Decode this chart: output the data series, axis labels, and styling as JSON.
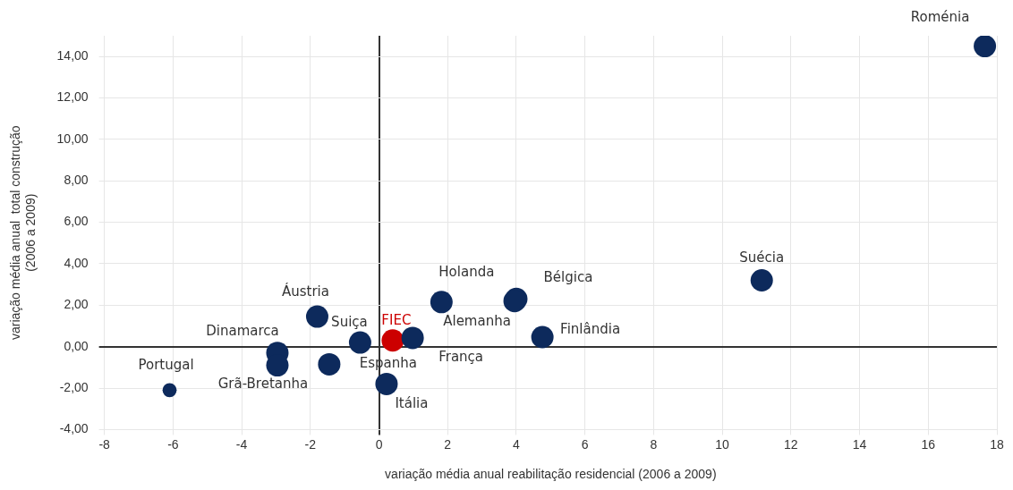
{
  "chart_data": {
    "type": "bubble",
    "xlabel": "variação média anual reabilitação residencial (2006 a 2009)",
    "ylabel": "variação média anual  total construção\n(2006 a 2009)",
    "xlim": [
      -8,
      18
    ],
    "xticks": [
      -8,
      -6,
      -4,
      -2,
      0,
      2,
      4,
      6,
      8,
      10,
      12,
      14,
      16,
      18
    ],
    "ylim": [
      -4,
      15
    ],
    "yticks": [
      {
        "value": -4,
        "label": "-4,00"
      },
      {
        "value": -2,
        "label": "-2,00"
      },
      {
        "value": 0,
        "label": "0,00"
      },
      {
        "value": 2,
        "label": "2,00"
      },
      {
        "value": 4,
        "label": "4,00"
      },
      {
        "value": 6,
        "label": "6,00"
      },
      {
        "value": 8,
        "label": "8,00"
      },
      {
        "value": 10,
        "label": "10,00"
      },
      {
        "value": 12,
        "label": "12,00"
      },
      {
        "value": 14,
        "label": "14,00"
      }
    ],
    "grid": true,
    "legend": false,
    "series": [
      {
        "color": "#0d2a5c",
        "x": [
          17.65,
          11.15,
          4.0,
          1.82,
          3.95,
          4.76,
          0.98,
          -0.55,
          0.22,
          -1.45,
          -1.8,
          -2.96,
          -2.96,
          -6.1
        ],
        "values": [
          14.5,
          3.2,
          2.3,
          2.15,
          2.2,
          0.46,
          0.42,
          0.2,
          -1.8,
          -0.85,
          1.45,
          -0.3,
          -0.9,
          -2.1
        ],
        "sizes": [
          1,
          1,
          1,
          1,
          1,
          1,
          1,
          1,
          1,
          1,
          1,
          1,
          1,
          0.4
        ]
      },
      {
        "name": "FIEC",
        "color": "#cc0000",
        "x": [
          0.4
        ],
        "values": [
          0.3
        ],
        "sizes": [
          1
        ]
      }
    ],
    "annotations": [
      {
        "text": "Roménia",
        "x": 17.65,
        "y": 14.5
      },
      {
        "text": "Suécia",
        "x": 11.15,
        "y": 3.2
      },
      {
        "text": "Bélgica",
        "x": 4.0,
        "y": 2.3
      },
      {
        "text": "Holanda",
        "x": 1.82,
        "y": 2.15
      },
      {
        "text": "Alemanha",
        "x": 3.95,
        "y": 2.2
      },
      {
        "text": "Finlândia",
        "x": 4.76,
        "y": 0.46
      },
      {
        "text": "França",
        "x": 0.98,
        "y": 0.42
      },
      {
        "text": "Suiça",
        "x": -0.55,
        "y": 0.2
      },
      {
        "text": "Itália",
        "x": 0.22,
        "y": -1.8
      },
      {
        "text": "Espanha",
        "x": -1.45,
        "y": -0.85
      },
      {
        "text": "Áustria",
        "x": -1.8,
        "y": 1.45
      },
      {
        "text": "Dinamarca",
        "x": -2.96,
        "y": -0.3
      },
      {
        "text": "Grã-Bretanha",
        "x": -2.96,
        "y": -0.9
      },
      {
        "text": "Portugal",
        "x": -6.1,
        "y": -2.1
      }
    ]
  }
}
